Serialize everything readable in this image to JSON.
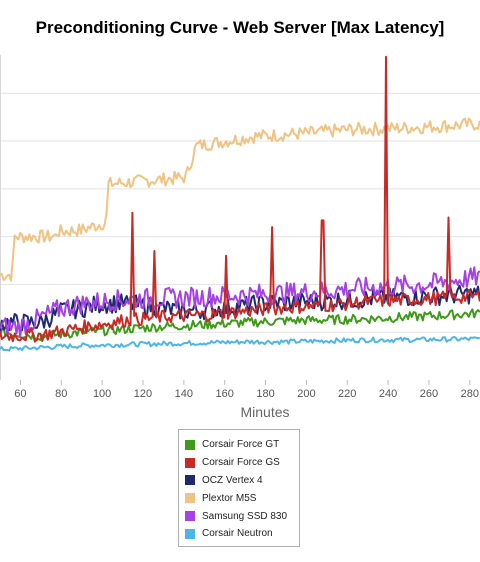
{
  "chart_data": {
    "type": "line",
    "title": "Preconditioning Curve - Web Server [Max Latency]",
    "xlabel": "Minutes",
    "ylabel": "",
    "xlim": [
      50,
      285
    ],
    "x_ticks": [
      60,
      80,
      100,
      120,
      140,
      160,
      180,
      200,
      220,
      240,
      260,
      280
    ],
    "ylim": [
      0,
      340
    ],
    "y_gridlines": [
      50,
      100,
      150,
      200,
      250,
      300
    ],
    "grid": true,
    "legend": "bottom-center",
    "series": [
      {
        "name": "Corsair Force GT",
        "color": "#3f9a1a",
        "key_points": [
          [
            50,
            50
          ],
          [
            70,
            46
          ],
          [
            90,
            50
          ],
          [
            110,
            53
          ],
          [
            130,
            56
          ],
          [
            150,
            58
          ],
          [
            170,
            60
          ],
          [
            190,
            62
          ],
          [
            210,
            63
          ],
          [
            230,
            64
          ],
          [
            250,
            66
          ],
          [
            270,
            68
          ],
          [
            285,
            70
          ]
        ],
        "noise": 5
      },
      {
        "name": "Corsair Force GS",
        "color": "#c82a26",
        "key_points": [
          [
            50,
            46
          ],
          [
            70,
            47
          ],
          [
            90,
            55
          ],
          [
            110,
            62
          ],
          [
            130,
            66
          ],
          [
            150,
            68
          ],
          [
            170,
            72
          ],
          [
            190,
            76
          ],
          [
            210,
            78
          ],
          [
            230,
            82
          ],
          [
            250,
            84
          ],
          [
            270,
            86
          ],
          [
            285,
            88
          ]
        ],
        "noise": 7,
        "spikes": [
          [
            115,
            175
          ],
          [
            126,
            135
          ],
          [
            161,
            130
          ],
          [
            183,
            160
          ],
          [
            208,
            167
          ],
          [
            239,
            338
          ],
          [
            270,
            170
          ]
        ]
      },
      {
        "name": "OCZ Vertex 4",
        "color": "#1f2a6e",
        "key_points": [
          [
            50,
            60
          ],
          [
            60,
            60
          ],
          [
            70,
            60
          ],
          [
            80,
            72
          ],
          [
            90,
            75
          ],
          [
            100,
            80
          ],
          [
            110,
            80
          ],
          [
            120,
            78
          ],
          [
            130,
            75
          ],
          [
            140,
            72
          ],
          [
            160,
            75
          ],
          [
            180,
            80
          ],
          [
            200,
            82
          ],
          [
            220,
            84
          ],
          [
            240,
            86
          ],
          [
            260,
            88
          ],
          [
            285,
            90
          ]
        ],
        "noise": 10
      },
      {
        "name": "Plextor M5S",
        "color": "#efc383",
        "key_points": [
          [
            50,
            110
          ],
          [
            56,
            110
          ],
          [
            57,
            150
          ],
          [
            77,
            150
          ],
          [
            78,
            155
          ],
          [
            90,
            157
          ],
          [
            102,
            165
          ],
          [
            103,
            205
          ],
          [
            141,
            212
          ],
          [
            146,
            245
          ],
          [
            175,
            255
          ],
          [
            200,
            258
          ],
          [
            220,
            262
          ],
          [
            240,
            263
          ],
          [
            260,
            265
          ],
          [
            285,
            268
          ]
        ],
        "noise": 7
      },
      {
        "name": "Samsung SSD 830",
        "color": "#a542e4",
        "key_points": [
          [
            50,
            55
          ],
          [
            60,
            56
          ],
          [
            70,
            65
          ],
          [
            80,
            75
          ],
          [
            90,
            80
          ],
          [
            100,
            82
          ],
          [
            110,
            84
          ],
          [
            120,
            85
          ],
          [
            140,
            86
          ],
          [
            160,
            88
          ],
          [
            180,
            90
          ],
          [
            200,
            92
          ],
          [
            220,
            95
          ],
          [
            240,
            98
          ],
          [
            260,
            100
          ],
          [
            285,
            108
          ]
        ],
        "noise": 11
      },
      {
        "name": "Corsair Neutron",
        "color": "#4db6e8",
        "key_points": [
          [
            50,
            32
          ],
          [
            70,
            34
          ],
          [
            90,
            36
          ],
          [
            110,
            37
          ],
          [
            130,
            38
          ],
          [
            150,
            39
          ],
          [
            170,
            40
          ],
          [
            190,
            40
          ],
          [
            210,
            41
          ],
          [
            230,
            42
          ],
          [
            250,
            42
          ],
          [
            285,
            43
          ]
        ],
        "noise": 2.5
      }
    ]
  }
}
